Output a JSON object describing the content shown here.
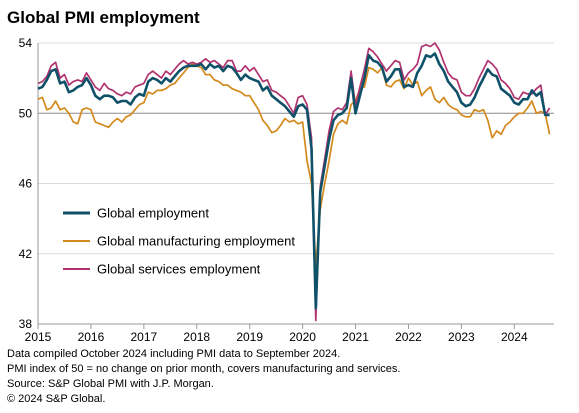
{
  "chart_data": {
    "type": "line",
    "title": "Global PMI employment",
    "xlabel": "",
    "ylabel": "",
    "xlim": [
      2015,
      2024.75
    ],
    "ylim": [
      38,
      54
    ],
    "y_ticks": [
      38,
      42,
      46,
      50,
      54
    ],
    "x_ticks": [
      "2015",
      "2016",
      "2017",
      "2018",
      "2019",
      "2020",
      "2021",
      "2022",
      "2023",
      "2024"
    ],
    "reference_line": 50,
    "grid": "horizontal",
    "legend": "lower-left",
    "series": [
      {
        "name": "Global employment",
        "color": "#10516a",
        "x": [
          2015.0,
          2015.083,
          2015.167,
          2015.25,
          2015.333,
          2015.417,
          2015.5,
          2015.583,
          2015.667,
          2015.75,
          2015.833,
          2015.917,
          2016.0,
          2016.083,
          2016.167,
          2016.25,
          2016.333,
          2016.417,
          2016.5,
          2016.583,
          2016.667,
          2016.75,
          2016.833,
          2016.917,
          2017.0,
          2017.083,
          2017.167,
          2017.25,
          2017.333,
          2017.417,
          2017.5,
          2017.583,
          2017.667,
          2017.75,
          2017.833,
          2017.917,
          2018.0,
          2018.083,
          2018.167,
          2018.25,
          2018.333,
          2018.417,
          2018.5,
          2018.583,
          2018.667,
          2018.75,
          2018.833,
          2018.917,
          2019.0,
          2019.083,
          2019.167,
          2019.25,
          2019.333,
          2019.417,
          2019.5,
          2019.583,
          2019.667,
          2019.75,
          2019.833,
          2019.917,
          2020.0,
          2020.083,
          2020.167,
          2020.25,
          2020.333,
          2020.417,
          2020.5,
          2020.583,
          2020.667,
          2020.75,
          2020.833,
          2020.917,
          2021.0,
          2021.083,
          2021.167,
          2021.25,
          2021.333,
          2021.417,
          2021.5,
          2021.583,
          2021.667,
          2021.75,
          2021.833,
          2021.917,
          2022.0,
          2022.083,
          2022.167,
          2022.25,
          2022.333,
          2022.417,
          2022.5,
          2022.583,
          2022.667,
          2022.75,
          2022.833,
          2022.917,
          2023.0,
          2023.083,
          2023.167,
          2023.25,
          2023.333,
          2023.417,
          2023.5,
          2023.583,
          2023.667,
          2023.75,
          2023.833,
          2023.917,
          2024.0,
          2024.083,
          2024.167,
          2024.25,
          2024.333,
          2024.417,
          2024.5,
          2024.583,
          2024.667
        ],
        "values": [
          51.4,
          51.5,
          51.9,
          52.4,
          52.5,
          51.7,
          51.8,
          51.2,
          51.3,
          51.5,
          51.6,
          52.0,
          51.6,
          51.0,
          50.8,
          51.0,
          51.0,
          50.9,
          50.6,
          50.7,
          50.7,
          50.5,
          50.9,
          51.1,
          51.0,
          51.8,
          52.0,
          51.9,
          51.7,
          52.0,
          51.8,
          52.1,
          52.4,
          52.6,
          52.7,
          52.7,
          52.7,
          52.8,
          52.5,
          52.8,
          52.6,
          52.7,
          52.4,
          52.7,
          52.6,
          52.3,
          51.9,
          52.2,
          52.0,
          51.9,
          51.8,
          51.3,
          51.5,
          51.0,
          50.8,
          50.6,
          50.4,
          50.1,
          49.8,
          50.4,
          50.5,
          50.2,
          48.0,
          38.9,
          45.5,
          47.0,
          48.5,
          49.6,
          49.9,
          50.0,
          50.3,
          52.0,
          50.0,
          51.0,
          52.0,
          53.3,
          53.0,
          52.9,
          52.6,
          51.8,
          52.1,
          52.5,
          52.5,
          51.5,
          51.6,
          51.5,
          52.3,
          52.7,
          53.3,
          53.2,
          53.4,
          52.8,
          52.4,
          51.8,
          51.5,
          51.2,
          50.6,
          50.4,
          50.5,
          50.9,
          51.5,
          52.0,
          52.5,
          52.2,
          52.1,
          51.4,
          51.2,
          51.0,
          50.6,
          50.5,
          50.8,
          50.8,
          51.3,
          51.0,
          51.2,
          49.9,
          49.9
        ]
      },
      {
        "name": "Global manufacturing employment",
        "color": "#d4891c",
        "x": [
          2015.0,
          2015.083,
          2015.167,
          2015.25,
          2015.333,
          2015.417,
          2015.5,
          2015.583,
          2015.667,
          2015.75,
          2015.833,
          2015.917,
          2016.0,
          2016.083,
          2016.167,
          2016.25,
          2016.333,
          2016.417,
          2016.5,
          2016.583,
          2016.667,
          2016.75,
          2016.833,
          2016.917,
          2017.0,
          2017.083,
          2017.167,
          2017.25,
          2017.333,
          2017.417,
          2017.5,
          2017.583,
          2017.667,
          2017.75,
          2017.833,
          2017.917,
          2018.0,
          2018.083,
          2018.167,
          2018.25,
          2018.333,
          2018.417,
          2018.5,
          2018.583,
          2018.667,
          2018.75,
          2018.833,
          2018.917,
          2019.0,
          2019.083,
          2019.167,
          2019.25,
          2019.333,
          2019.417,
          2019.5,
          2019.583,
          2019.667,
          2019.75,
          2019.833,
          2019.917,
          2020.0,
          2020.083,
          2020.167,
          2020.25,
          2020.333,
          2020.417,
          2020.5,
          2020.583,
          2020.667,
          2020.75,
          2020.833,
          2020.917,
          2021.0,
          2021.083,
          2021.167,
          2021.25,
          2021.333,
          2021.417,
          2021.5,
          2021.583,
          2021.667,
          2021.75,
          2021.833,
          2021.917,
          2022.0,
          2022.083,
          2022.167,
          2022.25,
          2022.333,
          2022.417,
          2022.5,
          2022.583,
          2022.667,
          2022.75,
          2022.833,
          2022.917,
          2023.0,
          2023.083,
          2023.167,
          2023.25,
          2023.333,
          2023.417,
          2023.5,
          2023.583,
          2023.667,
          2023.75,
          2023.833,
          2023.917,
          2024.0,
          2024.083,
          2024.167,
          2024.25,
          2024.333,
          2024.417,
          2024.5,
          2024.583,
          2024.667
        ],
        "values": [
          50.8,
          50.9,
          50.2,
          50.3,
          50.7,
          50.2,
          50.3,
          50.0,
          49.5,
          49.4,
          50.2,
          50.3,
          50.2,
          49.5,
          49.4,
          49.3,
          49.2,
          49.5,
          49.7,
          49.5,
          49.8,
          49.9,
          50.2,
          50.5,
          50.6,
          51.2,
          51.1,
          51.3,
          51.3,
          51.4,
          51.6,
          51.7,
          52.0,
          52.3,
          52.6,
          52.8,
          52.7,
          52.6,
          52.2,
          52.2,
          51.9,
          51.8,
          51.6,
          51.6,
          51.4,
          51.3,
          51.2,
          51.0,
          51.0,
          50.6,
          50.2,
          49.6,
          49.3,
          48.9,
          49.0,
          49.3,
          49.7,
          49.5,
          49.6,
          49.4,
          49.5,
          47.3,
          46.0,
          41.3,
          44.5,
          46.0,
          47.3,
          48.8,
          49.4,
          49.6,
          49.4,
          50.5,
          50.7,
          51.4,
          51.5,
          52.6,
          52.5,
          52.3,
          52.6,
          51.6,
          51.5,
          51.8,
          51.9,
          51.4,
          52.0,
          51.6,
          51.8,
          51.0,
          51.3,
          51.5,
          50.8,
          50.6,
          50.9,
          50.5,
          50.3,
          50.2,
          49.9,
          49.8,
          49.8,
          50.2,
          50.1,
          50.2,
          49.6,
          48.6,
          49.0,
          48.8,
          49.3,
          49.5,
          49.8,
          50.0,
          50.0,
          50.3,
          50.7,
          50.0,
          50.1,
          50.0,
          48.8
        ]
      },
      {
        "name": "Global services employment",
        "color": "#b0336f",
        "x": [
          2015.0,
          2015.083,
          2015.167,
          2015.25,
          2015.333,
          2015.417,
          2015.5,
          2015.583,
          2015.667,
          2015.75,
          2015.833,
          2015.917,
          2016.0,
          2016.083,
          2016.167,
          2016.25,
          2016.333,
          2016.417,
          2016.5,
          2016.583,
          2016.667,
          2016.75,
          2016.833,
          2016.917,
          2017.0,
          2017.083,
          2017.167,
          2017.25,
          2017.333,
          2017.417,
          2017.5,
          2017.583,
          2017.667,
          2017.75,
          2017.833,
          2017.917,
          2018.0,
          2018.083,
          2018.167,
          2018.25,
          2018.333,
          2018.417,
          2018.5,
          2018.583,
          2018.667,
          2018.75,
          2018.833,
          2018.917,
          2019.0,
          2019.083,
          2019.167,
          2019.25,
          2019.333,
          2019.417,
          2019.5,
          2019.583,
          2019.667,
          2019.75,
          2019.833,
          2019.917,
          2020.0,
          2020.083,
          2020.167,
          2020.25,
          2020.333,
          2020.417,
          2020.5,
          2020.583,
          2020.667,
          2020.75,
          2020.833,
          2020.917,
          2021.0,
          2021.083,
          2021.167,
          2021.25,
          2021.333,
          2021.417,
          2021.5,
          2021.583,
          2021.667,
          2021.75,
          2021.833,
          2021.917,
          2022.0,
          2022.083,
          2022.167,
          2022.25,
          2022.333,
          2022.417,
          2022.5,
          2022.583,
          2022.667,
          2022.75,
          2022.833,
          2022.917,
          2023.0,
          2023.083,
          2023.167,
          2023.25,
          2023.333,
          2023.417,
          2023.5,
          2023.583,
          2023.667,
          2023.75,
          2023.833,
          2023.917,
          2024.0,
          2024.083,
          2024.167,
          2024.25,
          2024.333,
          2024.417,
          2024.5,
          2024.583,
          2024.667
        ],
        "values": [
          51.7,
          51.8,
          52.1,
          52.7,
          52.9,
          52.0,
          52.2,
          51.6,
          51.8,
          51.9,
          51.8,
          52.3,
          51.9,
          51.5,
          51.3,
          51.7,
          51.4,
          51.3,
          51.1,
          51.0,
          51.2,
          51.1,
          51.5,
          51.6,
          51.7,
          52.2,
          52.4,
          52.2,
          52.0,
          52.4,
          52.2,
          52.5,
          52.8,
          53.0,
          52.8,
          52.9,
          52.8,
          52.9,
          53.1,
          52.9,
          53.0,
          52.8,
          52.6,
          53.0,
          53.0,
          52.4,
          52.4,
          52.7,
          52.4,
          52.6,
          52.2,
          51.8,
          51.9,
          51.3,
          51.2,
          51.0,
          50.8,
          50.4,
          50.0,
          50.9,
          51.0,
          50.5,
          48.6,
          38.2,
          45.8,
          47.4,
          49.0,
          50.1,
          50.3,
          50.2,
          50.6,
          52.4,
          50.4,
          51.5,
          52.5,
          53.7,
          53.5,
          53.2,
          52.8,
          52.4,
          52.7,
          53.0,
          52.9,
          51.9,
          52.3,
          52.5,
          52.8,
          53.8,
          53.9,
          53.8,
          54.0,
          53.6,
          52.9,
          52.3,
          52.0,
          51.9,
          51.2,
          51.0,
          51.0,
          51.4,
          52.0,
          52.5,
          53.0,
          52.8,
          52.5,
          51.9,
          51.7,
          51.4,
          50.9,
          50.8,
          51.2,
          51.1,
          51.1,
          51.4,
          51.6,
          49.9,
          50.3
        ]
      }
    ],
    "notes": [
      "Data compiled October 2024 including PMI data to September 2024.",
      "PMI index of 50 = no change on prior month, covers manufacturing and services.",
      "Source: S&P Global PMI with J.P. Morgan.",
      "© 2024 S&P Global."
    ]
  }
}
